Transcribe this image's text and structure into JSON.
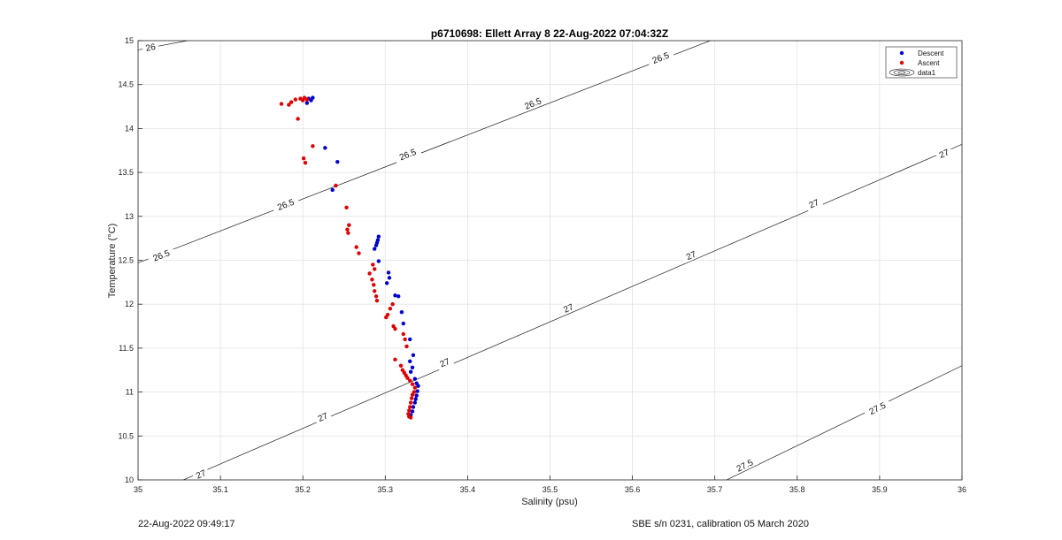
{
  "chart_data": {
    "type": "scatter",
    "title": "p6710698: Ellett Array 8 22-Aug-2022 07:04:32Z",
    "xlabel": "Salinity (psu)",
    "ylabel": "Temperature (°C)",
    "xlim": [
      35,
      36
    ],
    "ylim": [
      10,
      15
    ],
    "xticks": [
      "35",
      "35.1",
      "35.2",
      "35.3",
      "35.4",
      "35.5",
      "35.6",
      "35.7",
      "35.8",
      "35.9",
      "36"
    ],
    "yticks": [
      "10",
      "10.5",
      "11",
      "11.5",
      "12",
      "12.5",
      "13",
      "13.5",
      "14",
      "14.5",
      "15"
    ],
    "grid": true,
    "legend_position": "top-right",
    "legend": [
      "Descent",
      "Ascent",
      "data1"
    ],
    "series": [
      {
        "name": "Descent",
        "color": "#0000cc",
        "points": [
          [
            35.207,
            14.34
          ],
          [
            35.21,
            14.32
          ],
          [
            35.205,
            14.29
          ],
          [
            35.212,
            14.35
          ],
          [
            35.227,
            13.78
          ],
          [
            35.242,
            13.62
          ],
          [
            35.236,
            13.3
          ],
          [
            35.292,
            12.77
          ],
          [
            35.291,
            12.73
          ],
          [
            35.29,
            12.7
          ],
          [
            35.289,
            12.67
          ],
          [
            35.287,
            12.63
          ],
          [
            35.292,
            12.49
          ],
          [
            35.304,
            12.36
          ],
          [
            35.305,
            12.3
          ],
          [
            35.302,
            12.24
          ],
          [
            35.312,
            12.1
          ],
          [
            35.316,
            12.09
          ],
          [
            35.32,
            11.91
          ],
          [
            35.322,
            11.78
          ],
          [
            35.33,
            11.6
          ],
          [
            35.334,
            11.42
          ],
          [
            35.33,
            11.35
          ],
          [
            35.333,
            11.28
          ],
          [
            35.331,
            11.23
          ],
          [
            35.336,
            11.15
          ],
          [
            35.338,
            11.1
          ],
          [
            35.34,
            11.07
          ],
          [
            35.339,
            11.01
          ],
          [
            35.338,
            10.96
          ],
          [
            35.337,
            10.92
          ],
          [
            35.336,
            10.88
          ],
          [
            35.334,
            10.83
          ],
          [
            35.333,
            10.78
          ],
          [
            35.331,
            10.74
          ]
        ]
      },
      {
        "name": "Ascent",
        "color": "#dd0000",
        "points": [
          [
            35.174,
            14.28
          ],
          [
            35.183,
            14.27
          ],
          [
            35.186,
            14.3
          ],
          [
            35.191,
            14.33
          ],
          [
            35.197,
            14.34
          ],
          [
            35.2,
            14.32
          ],
          [
            35.202,
            14.35
          ],
          [
            35.205,
            14.33
          ],
          [
            35.194,
            14.11
          ],
          [
            35.212,
            13.8
          ],
          [
            35.201,
            13.66
          ],
          [
            35.203,
            13.61
          ],
          [
            35.24,
            13.35
          ],
          [
            35.253,
            13.1
          ],
          [
            35.256,
            12.9
          ],
          [
            35.254,
            12.85
          ],
          [
            35.255,
            12.81
          ],
          [
            35.265,
            12.65
          ],
          [
            35.268,
            12.58
          ],
          [
            35.285,
            12.45
          ],
          [
            35.287,
            12.4
          ],
          [
            35.281,
            12.35
          ],
          [
            35.284,
            12.28
          ],
          [
            35.286,
            12.22
          ],
          [
            35.287,
            12.15
          ],
          [
            35.289,
            12.09
          ],
          [
            35.29,
            12.04
          ],
          [
            35.309,
            12.0
          ],
          [
            35.306,
            11.95
          ],
          [
            35.303,
            11.88
          ],
          [
            35.301,
            11.85
          ],
          [
            35.31,
            11.75
          ],
          [
            35.312,
            11.72
          ],
          [
            35.322,
            11.66
          ],
          [
            35.324,
            11.6
          ],
          [
            35.326,
            11.52
          ],
          [
            35.312,
            11.37
          ],
          [
            35.319,
            11.3
          ],
          [
            35.321,
            11.25
          ],
          [
            35.323,
            11.22
          ],
          [
            35.325,
            11.19
          ],
          [
            35.327,
            11.16
          ],
          [
            35.33,
            11.13
          ],
          [
            35.333,
            11.09
          ],
          [
            35.336,
            11.05
          ],
          [
            35.335,
            11.0
          ],
          [
            35.333,
            10.97
          ],
          [
            35.332,
            10.93
          ],
          [
            35.331,
            10.88
          ],
          [
            35.33,
            10.83
          ],
          [
            35.329,
            10.79
          ],
          [
            35.328,
            10.75
          ],
          [
            35.329,
            10.72
          ],
          [
            35.331,
            10.71
          ]
        ]
      }
    ],
    "contours": [
      {
        "level": "26",
        "path": [
          [
            34.98,
            14.86
          ],
          [
            35.06,
            15.0
          ]
        ],
        "labels": [
          [
            35.015,
            14.93
          ]
        ]
      },
      {
        "level": "26.5",
        "path": [
          [
            35.0,
            12.47
          ],
          [
            35.7,
            15.02
          ]
        ],
        "labels": [
          [
            35.028,
            12.56
          ],
          [
            35.179,
            13.14
          ],
          [
            35.327,
            13.71
          ],
          [
            35.479,
            14.29
          ],
          [
            35.634,
            14.81
          ]
        ]
      },
      {
        "level": "27",
        "path": [
          [
            35.05,
            9.98
          ],
          [
            36.0,
            13.82
          ]
        ],
        "labels": [
          [
            35.076,
            10.07
          ],
          [
            35.224,
            10.72
          ],
          [
            35.372,
            11.34
          ],
          [
            35.522,
            11.96
          ],
          [
            35.671,
            12.56
          ],
          [
            35.82,
            13.15
          ],
          [
            35.978,
            13.72
          ]
        ]
      },
      {
        "level": "27.5",
        "path": [
          [
            35.71,
            9.98
          ],
          [
            36.0,
            11.3
          ]
        ],
        "labels": [
          [
            35.736,
            10.17
          ],
          [
            35.897,
            10.82
          ]
        ]
      }
    ]
  },
  "footer": {
    "timestamp": "22-Aug-2022 09:49:17",
    "sensor": "SBE s/n 0231, calibration 05 March 2020"
  }
}
